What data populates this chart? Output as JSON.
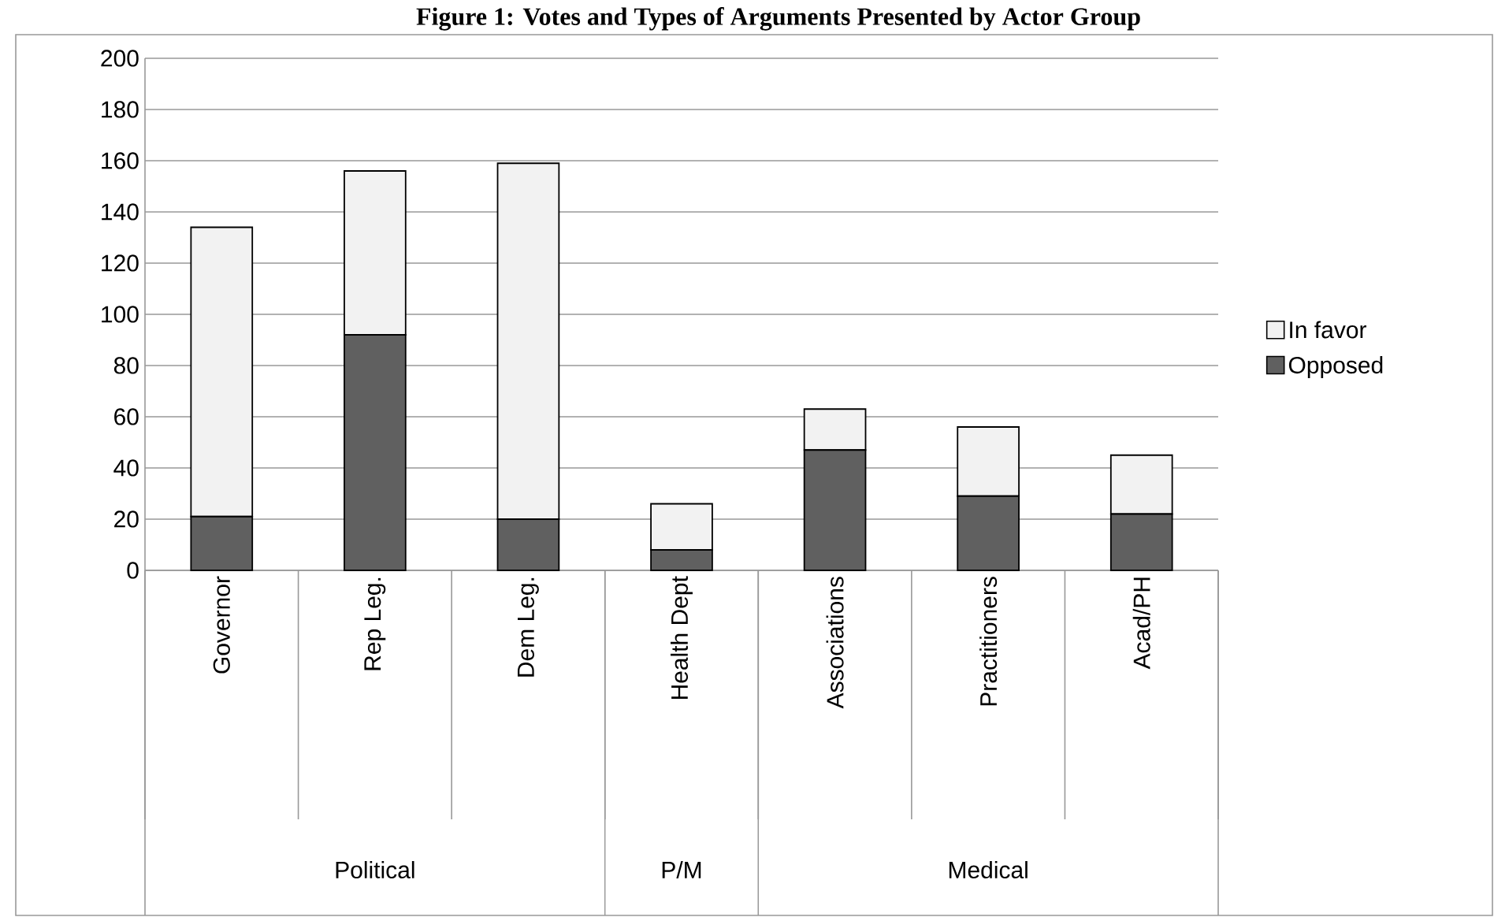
{
  "chart_data": {
    "type": "bar",
    "title": "Figure 1: Votes and Types of Arguments Presented by Actor Group",
    "categories": [
      "Governor",
      "Rep Leg.",
      "Dem Leg.",
      "Health Dept",
      "Associations",
      "Practitioners",
      "Acad/PH"
    ],
    "series": [
      {
        "name": "Opposed",
        "color": "#606060",
        "values": [
          21,
          92,
          20,
          8,
          47,
          29,
          22
        ]
      },
      {
        "name": "In favor",
        "color": "#f2f2f2",
        "values": [
          113,
          64,
          139,
          18,
          16,
          27,
          23
        ]
      }
    ],
    "stacked": true,
    "ylim": [
      0,
      200
    ],
    "yticks": [
      0,
      20,
      40,
      60,
      80,
      100,
      120,
      140,
      160,
      180,
      200
    ],
    "grid": "y",
    "legend": "right",
    "annotations": [
      "Political",
      "P/M",
      "Medical"
    ]
  }
}
